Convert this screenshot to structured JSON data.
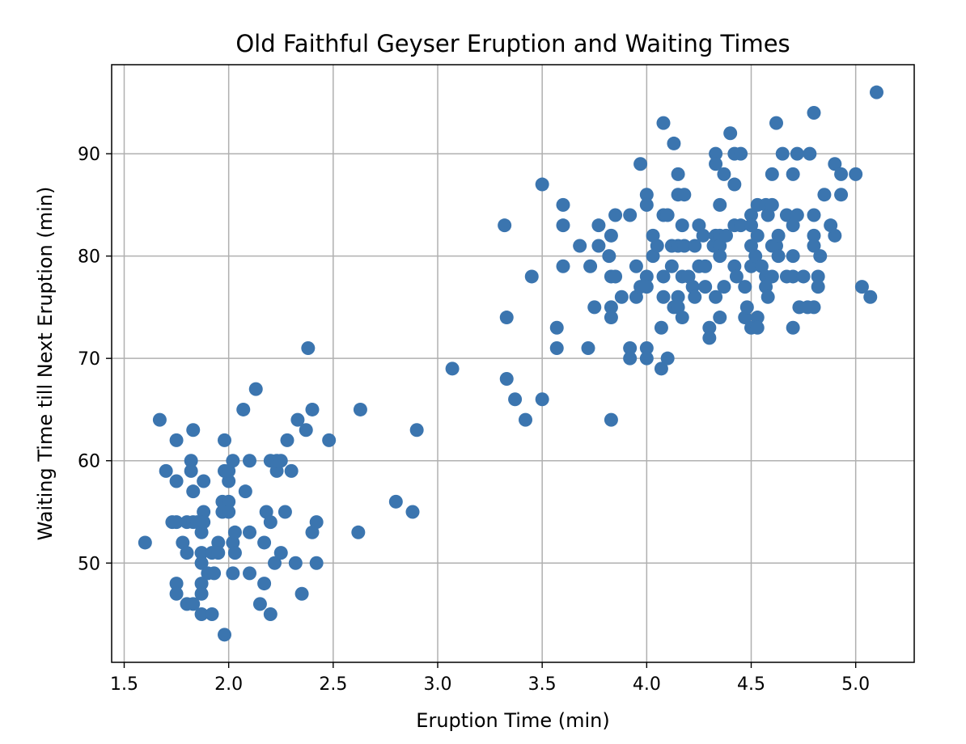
{
  "chart_data": {
    "type": "scatter",
    "title": "Old Faithful Geyser Eruption and Waiting Times",
    "xlabel": "Eruption Time (min)",
    "ylabel": "Waiting Time till Next Eruption (min)",
    "xlim": [
      1.44,
      5.28
    ],
    "ylim": [
      40.3,
      98.7
    ],
    "xticks": [
      1.5,
      2.0,
      2.5,
      3.0,
      3.5,
      4.0,
      4.5,
      5.0
    ],
    "xtick_labels": [
      "1.5",
      "2.0",
      "2.5",
      "3.0",
      "3.5",
      "4.0",
      "4.5",
      "5.0"
    ],
    "yticks": [
      50,
      60,
      70,
      80,
      90
    ],
    "ytick_labels": [
      "50",
      "60",
      "70",
      "80",
      "90"
    ],
    "grid": true,
    "marker_color": "#3b75af",
    "points": [
      [
        1.6,
        52
      ],
      [
        1.67,
        64
      ],
      [
        1.7,
        59
      ],
      [
        1.73,
        54
      ],
      [
        1.75,
        54
      ],
      [
        1.75,
        62
      ],
      [
        1.75,
        58
      ],
      [
        1.75,
        48
      ],
      [
        1.75,
        47
      ],
      [
        1.78,
        52
      ],
      [
        1.8,
        54
      ],
      [
        1.8,
        51
      ],
      [
        1.8,
        46
      ],
      [
        1.82,
        60
      ],
      [
        1.82,
        59
      ],
      [
        1.83,
        63
      ],
      [
        1.83,
        57
      ],
      [
        1.83,
        54
      ],
      [
        1.83,
        46
      ],
      [
        1.85,
        54
      ],
      [
        1.87,
        53
      ],
      [
        1.87,
        51
      ],
      [
        1.87,
        50
      ],
      [
        1.87,
        48
      ],
      [
        1.87,
        47
      ],
      [
        1.87,
        45
      ],
      [
        1.88,
        58
      ],
      [
        1.88,
        55
      ],
      [
        1.88,
        54
      ],
      [
        1.9,
        49
      ],
      [
        1.92,
        51
      ],
      [
        1.92,
        45
      ],
      [
        1.93,
        49
      ],
      [
        1.95,
        52
      ],
      [
        1.95,
        51
      ],
      [
        1.97,
        56
      ],
      [
        1.97,
        55
      ],
      [
        1.98,
        62
      ],
      [
        1.98,
        59
      ],
      [
        1.98,
        43
      ],
      [
        2.0,
        58
      ],
      [
        2.0,
        56
      ],
      [
        2.0,
        55
      ],
      [
        2.0,
        59
      ],
      [
        2.02,
        60
      ],
      [
        2.02,
        52
      ],
      [
        2.02,
        49
      ],
      [
        2.03,
        53
      ],
      [
        2.03,
        51
      ],
      [
        2.07,
        65
      ],
      [
        2.08,
        57
      ],
      [
        2.1,
        60
      ],
      [
        2.1,
        53
      ],
      [
        2.1,
        49
      ],
      [
        2.13,
        67
      ],
      [
        2.15,
        46
      ],
      [
        2.17,
        52
      ],
      [
        2.17,
        48
      ],
      [
        2.18,
        55
      ],
      [
        2.2,
        60
      ],
      [
        2.2,
        54
      ],
      [
        2.2,
        45
      ],
      [
        2.22,
        50
      ],
      [
        2.23,
        59
      ],
      [
        2.23,
        60
      ],
      [
        2.25,
        60
      ],
      [
        2.25,
        51
      ],
      [
        2.27,
        55
      ],
      [
        2.28,
        62
      ],
      [
        2.3,
        59
      ],
      [
        2.32,
        50
      ],
      [
        2.33,
        64
      ],
      [
        2.35,
        47
      ],
      [
        2.37,
        63
      ],
      [
        2.38,
        71
      ],
      [
        2.4,
        65
      ],
      [
        2.4,
        53
      ],
      [
        2.42,
        54
      ],
      [
        2.42,
        50
      ],
      [
        2.48,
        62
      ],
      [
        2.62,
        53
      ],
      [
        2.63,
        65
      ],
      [
        2.8,
        56
      ],
      [
        2.88,
        55
      ],
      [
        2.9,
        63
      ],
      [
        3.07,
        69
      ],
      [
        3.32,
        83
      ],
      [
        3.33,
        74
      ],
      [
        3.33,
        68
      ],
      [
        3.37,
        66
      ],
      [
        3.42,
        64
      ],
      [
        3.45,
        78
      ],
      [
        3.5,
        87
      ],
      [
        3.5,
        66
      ],
      [
        3.57,
        73
      ],
      [
        3.57,
        71
      ],
      [
        3.6,
        85
      ],
      [
        3.6,
        83
      ],
      [
        3.6,
        79
      ],
      [
        3.68,
        81
      ],
      [
        3.72,
        71
      ],
      [
        3.73,
        79
      ],
      [
        3.75,
        75
      ],
      [
        3.77,
        83
      ],
      [
        3.77,
        81
      ],
      [
        3.82,
        80
      ],
      [
        3.83,
        78
      ],
      [
        3.83,
        75
      ],
      [
        3.83,
        74
      ],
      [
        3.83,
        64
      ],
      [
        3.83,
        82
      ],
      [
        3.85,
        84
      ],
      [
        3.85,
        78
      ],
      [
        3.88,
        76
      ],
      [
        3.92,
        84
      ],
      [
        3.92,
        71
      ],
      [
        3.92,
        70
      ],
      [
        3.95,
        79
      ],
      [
        3.95,
        76
      ],
      [
        3.97,
        89
      ],
      [
        3.97,
        77
      ],
      [
        4.0,
        86
      ],
      [
        4.0,
        85
      ],
      [
        4.0,
        78
      ],
      [
        4.0,
        77
      ],
      [
        4.0,
        71
      ],
      [
        4.0,
        70
      ],
      [
        4.03,
        82
      ],
      [
        4.03,
        80
      ],
      [
        4.05,
        81
      ],
      [
        4.07,
        73
      ],
      [
        4.07,
        69
      ],
      [
        4.08,
        93
      ],
      [
        4.08,
        84
      ],
      [
        4.08,
        78
      ],
      [
        4.08,
        76
      ],
      [
        4.1,
        84
      ],
      [
        4.1,
        70
      ],
      [
        4.12,
        81
      ],
      [
        4.12,
        79
      ],
      [
        4.13,
        91
      ],
      [
        4.13,
        75
      ],
      [
        4.15,
        88
      ],
      [
        4.15,
        86
      ],
      [
        4.15,
        81
      ],
      [
        4.15,
        76
      ],
      [
        4.15,
        75
      ],
      [
        4.17,
        83
      ],
      [
        4.17,
        78
      ],
      [
        4.17,
        74
      ],
      [
        4.18,
        86
      ],
      [
        4.18,
        81
      ],
      [
        4.2,
        78
      ],
      [
        4.22,
        77
      ],
      [
        4.23,
        81
      ],
      [
        4.23,
        76
      ],
      [
        4.25,
        83
      ],
      [
        4.25,
        79
      ],
      [
        4.27,
        82
      ],
      [
        4.28,
        79
      ],
      [
        4.28,
        77
      ],
      [
        4.3,
        73
      ],
      [
        4.3,
        72
      ],
      [
        4.32,
        81
      ],
      [
        4.33,
        90
      ],
      [
        4.33,
        89
      ],
      [
        4.33,
        82
      ],
      [
        4.33,
        76
      ],
      [
        4.35,
        85
      ],
      [
        4.35,
        82
      ],
      [
        4.35,
        81
      ],
      [
        4.35,
        80
      ],
      [
        4.35,
        74
      ],
      [
        4.37,
        88
      ],
      [
        4.37,
        77
      ],
      [
        4.38,
        82
      ],
      [
        4.4,
        92
      ],
      [
        4.42,
        90
      ],
      [
        4.42,
        87
      ],
      [
        4.42,
        83
      ],
      [
        4.42,
        79
      ],
      [
        4.43,
        78
      ],
      [
        4.45,
        90
      ],
      [
        4.45,
        83
      ],
      [
        4.47,
        77
      ],
      [
        4.47,
        74
      ],
      [
        4.48,
        75
      ],
      [
        4.5,
        84
      ],
      [
        4.5,
        83
      ],
      [
        4.5,
        81
      ],
      [
        4.5,
        79
      ],
      [
        4.5,
        73
      ],
      [
        4.52,
        80
      ],
      [
        4.53,
        85
      ],
      [
        4.53,
        82
      ],
      [
        4.53,
        74
      ],
      [
        4.53,
        73
      ],
      [
        4.55,
        79
      ],
      [
        4.57,
        85
      ],
      [
        4.57,
        78
      ],
      [
        4.57,
        77
      ],
      [
        4.58,
        84
      ],
      [
        4.58,
        76
      ],
      [
        4.6,
        88
      ],
      [
        4.6,
        85
      ],
      [
        4.6,
        81
      ],
      [
        4.6,
        78
      ],
      [
        4.62,
        93
      ],
      [
        4.62,
        81
      ],
      [
        4.63,
        82
      ],
      [
        4.63,
        80
      ],
      [
        4.65,
        90
      ],
      [
        4.67,
        84
      ],
      [
        4.67,
        78
      ],
      [
        4.7,
        88
      ],
      [
        4.7,
        83
      ],
      [
        4.7,
        80
      ],
      [
        4.7,
        78
      ],
      [
        4.7,
        73
      ],
      [
        4.72,
        90
      ],
      [
        4.72,
        84
      ],
      [
        4.73,
        75
      ],
      [
        4.75,
        78
      ],
      [
        4.77,
        75
      ],
      [
        4.78,
        90
      ],
      [
        4.8,
        94
      ],
      [
        4.8,
        84
      ],
      [
        4.8,
        82
      ],
      [
        4.8,
        81
      ],
      [
        4.8,
        75
      ],
      [
        4.82,
        78
      ],
      [
        4.82,
        77
      ],
      [
        4.83,
        80
      ],
      [
        4.85,
        86
      ],
      [
        4.88,
        83
      ],
      [
        4.9,
        89
      ],
      [
        4.9,
        82
      ],
      [
        4.93,
        88
      ],
      [
        4.93,
        86
      ],
      [
        5.0,
        88
      ],
      [
        5.03,
        77
      ],
      [
        5.07,
        76
      ],
      [
        5.1,
        96
      ]
    ]
  }
}
